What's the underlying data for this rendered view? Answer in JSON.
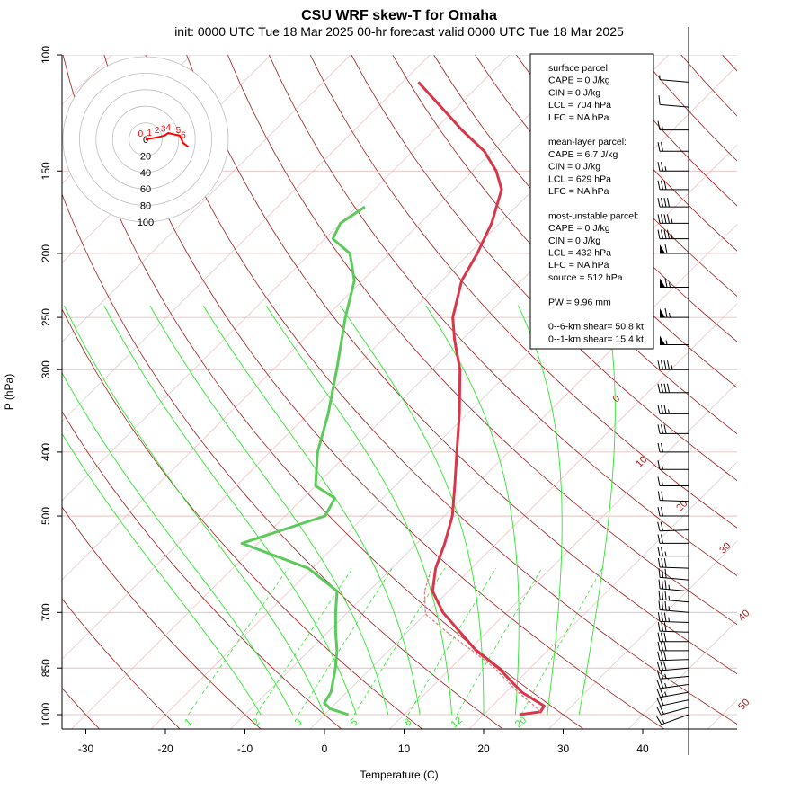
{
  "title": "CSU WRF skew-T for Omaha",
  "subtitle": "init: 0000 UTC Tue 18 Mar 2025    00-hr forecast valid 0000 UTC Tue 18 Mar 2025",
  "colors": {
    "isobar": "#e3b5b5",
    "isotherm": "#e3b5b5",
    "dry_adiabat": "#9b1c1c",
    "moist_adiabat": "#2ce62c",
    "mixing_ratio": "#2ce62c",
    "temperature": "#d9364a",
    "dewpoint": "#5cc95c",
    "parcel": "#e07b7b",
    "wind": "#000000",
    "hodograph": "#ff0000"
  },
  "chart_data": {
    "type": "line",
    "title": "CSU WRF skew-T for Omaha",
    "xlabel": "Temperature (C)",
    "ylabel": "P (hPa)",
    "xlim": [
      -33,
      52
    ],
    "ylim": [
      1050,
      100
    ],
    "x_ticks": [
      -30,
      -20,
      -10,
      0,
      10,
      20,
      30,
      40
    ],
    "y_ticks": [
      100,
      150,
      200,
      250,
      300,
      400,
      500,
      700,
      850,
      1000
    ],
    "isobars": [
      1000,
      850,
      700,
      500,
      400,
      300,
      250,
      200,
      150,
      100
    ],
    "dry_adiabat_labels": [
      0,
      10,
      20,
      30,
      40,
      50
    ],
    "mixing_ratio_labels": [
      1,
      2,
      3,
      5,
      8,
      12,
      20
    ],
    "series": [
      {
        "name": "temperature",
        "points": [
          [
            1000,
            24.5
          ],
          [
            990,
            26.8
          ],
          [
            970,
            26.5
          ],
          [
            925,
            22.0
          ],
          [
            850,
            16.0
          ],
          [
            800,
            11.0
          ],
          [
            700,
            2.0
          ],
          [
            650,
            -2.0
          ],
          [
            600,
            -4.5
          ],
          [
            550,
            -6.5
          ],
          [
            500,
            -9.0
          ],
          [
            450,
            -12.5
          ],
          [
            400,
            -16.5
          ],
          [
            350,
            -21.0
          ],
          [
            300,
            -26.5
          ],
          [
            270,
            -31.0
          ],
          [
            250,
            -34.0
          ],
          [
            220,
            -37.5
          ],
          [
            200,
            -39.0
          ],
          [
            180,
            -41.0
          ],
          [
            160,
            -44.0
          ],
          [
            150,
            -47.0
          ],
          [
            140,
            -51.0
          ],
          [
            130,
            -56.5
          ],
          [
            120,
            -62.0
          ],
          [
            110,
            -68.0
          ]
        ]
      },
      {
        "name": "dewpoint",
        "points": [
          [
            1000,
            3.0
          ],
          [
            980,
            0.0
          ],
          [
            960,
            -1.5
          ],
          [
            925,
            -2.0
          ],
          [
            850,
            -4.5
          ],
          [
            800,
            -6.5
          ],
          [
            750,
            -9.0
          ],
          [
            700,
            -11.5
          ],
          [
            650,
            -14.0
          ],
          [
            600,
            -20.5
          ],
          [
            550,
            -32.0
          ],
          [
            500,
            -25.0
          ],
          [
            470,
            -26.0
          ],
          [
            450,
            -30.0
          ],
          [
            400,
            -34.0
          ],
          [
            350,
            -37.5
          ],
          [
            300,
            -42.0
          ],
          [
            250,
            -47.5
          ],
          [
            220,
            -51.0
          ],
          [
            200,
            -55.0
          ],
          [
            190,
            -59.0
          ],
          [
            180,
            -60.0
          ],
          [
            170,
            -59.0
          ]
        ]
      },
      {
        "name": "parcel",
        "points": [
          [
            990,
            26.8
          ],
          [
            960,
            24.5
          ],
          [
            925,
            21.5
          ],
          [
            850,
            15.5
          ],
          [
            800,
            10.5
          ],
          [
            750,
            5.0
          ],
          [
            704,
            0.0
          ],
          [
            650,
            -3.0
          ],
          [
            600,
            -5.0
          ]
        ]
      }
    ],
    "winds": [
      {
        "p": 1000,
        "dir": 250,
        "kt": 15
      },
      {
        "p": 975,
        "dir": 255,
        "kt": 20
      },
      {
        "p": 950,
        "dir": 258,
        "kt": 20
      },
      {
        "p": 925,
        "dir": 260,
        "kt": 25
      },
      {
        "p": 900,
        "dir": 262,
        "kt": 25
      },
      {
        "p": 875,
        "dir": 265,
        "kt": 25
      },
      {
        "p": 850,
        "dir": 265,
        "kt": 30
      },
      {
        "p": 825,
        "dir": 268,
        "kt": 30
      },
      {
        "p": 800,
        "dir": 270,
        "kt": 30
      },
      {
        "p": 775,
        "dir": 270,
        "kt": 30
      },
      {
        "p": 750,
        "dir": 272,
        "kt": 30
      },
      {
        "p": 725,
        "dir": 272,
        "kt": 35
      },
      {
        "p": 700,
        "dir": 275,
        "kt": 35
      },
      {
        "p": 675,
        "dir": 275,
        "kt": 35
      },
      {
        "p": 650,
        "dir": 275,
        "kt": 35
      },
      {
        "p": 625,
        "dir": 275,
        "kt": 30
      },
      {
        "p": 600,
        "dir": 272,
        "kt": 30
      },
      {
        "p": 575,
        "dir": 270,
        "kt": 25
      },
      {
        "p": 550,
        "dir": 270,
        "kt": 20
      },
      {
        "p": 525,
        "dir": 268,
        "kt": 20
      },
      {
        "p": 500,
        "dir": 270,
        "kt": 20
      },
      {
        "p": 475,
        "dir": 272,
        "kt": 20
      },
      {
        "p": 450,
        "dir": 270,
        "kt": 15
      },
      {
        "p": 425,
        "dir": 270,
        "kt": 15
      },
      {
        "p": 400,
        "dir": 270,
        "kt": 20
      },
      {
        "p": 375,
        "dir": 270,
        "kt": 30
      },
      {
        "p": 350,
        "dir": 270,
        "kt": 35
      },
      {
        "p": 325,
        "dir": 270,
        "kt": 40
      },
      {
        "p": 300,
        "dir": 270,
        "kt": 45
      },
      {
        "p": 275,
        "dir": 270,
        "kt": 55
      },
      {
        "p": 250,
        "dir": 270,
        "kt": 65
      },
      {
        "p": 225,
        "dir": 270,
        "kt": 65
      },
      {
        "p": 200,
        "dir": 270,
        "kt": 60
      },
      {
        "p": 190,
        "dir": 270,
        "kt": 45
      },
      {
        "p": 180,
        "dir": 270,
        "kt": 45
      },
      {
        "p": 170,
        "dir": 270,
        "kt": 40
      },
      {
        "p": 160,
        "dir": 270,
        "kt": 30
      },
      {
        "p": 150,
        "dir": 270,
        "kt": 25
      },
      {
        "p": 140,
        "dir": 270,
        "kt": 20
      },
      {
        "p": 130,
        "dir": 270,
        "kt": 15
      },
      {
        "p": 120,
        "dir": 275,
        "kt": 10
      },
      {
        "p": 110,
        "dir": 275,
        "kt": 5
      }
    ],
    "hodograph": {
      "ring_labels": [
        0,
        20,
        40,
        60,
        80,
        100
      ],
      "height_labels": [
        0,
        1,
        2,
        3,
        4,
        5,
        6
      ],
      "points_kt": [
        [
          0,
          0
        ],
        [
          6,
          1
        ],
        [
          11,
          2
        ],
        [
          15,
          3
        ],
        [
          18,
          5
        ],
        [
          22,
          4
        ],
        [
          27,
          3
        ],
        [
          30,
          -3
        ],
        [
          34,
          -6
        ]
      ]
    }
  },
  "info_panel": {
    "lines": [
      "surface parcel:",
      "CAPE = 0 J/kg",
      "CIN = 0 J/kg",
      "LCL = 704 hPa",
      "LFC = NA hPa",
      "",
      "mean-layer parcel:",
      "CAPE = 6.7 J/kg",
      "CIN = 0 J/kg",
      "LCL = 629 hPa",
      "LFC = NA hPa",
      "",
      "most-unstable parcel:",
      "CAPE = 0 J/kg",
      "CIN = 0 J/kg",
      "LCL = 432 hPa",
      "LFC = NA hPa",
      "source = 512 hPa",
      "",
      "PW =  9.96 mm",
      "",
      "0--6-km shear= 50.8 kt",
      "0--1-km shear= 15.4 kt"
    ]
  }
}
